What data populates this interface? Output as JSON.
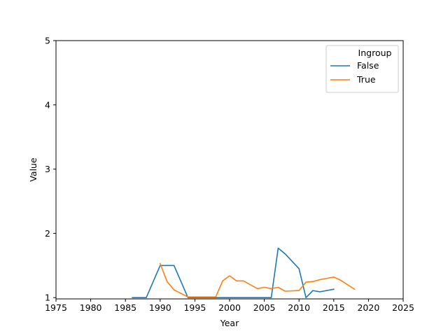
{
  "chart_data": {
    "type": "line",
    "xlabel": "Year",
    "ylabel": "Value",
    "xlim": [
      1975,
      2025
    ],
    "ylim": [
      0.98,
      5
    ],
    "xticks": [
      1975,
      1980,
      1985,
      1990,
      1995,
      2000,
      2005,
      2010,
      2015,
      2020,
      2025
    ],
    "yticks": [
      1,
      2,
      3,
      4,
      5
    ],
    "grid": false,
    "legend": {
      "title": "Ingroup",
      "placement": "top-right"
    },
    "series": [
      {
        "name": "False",
        "color": "#1f77b4",
        "x": [
          1986,
          1988,
          1990,
          1992,
          1994,
          1996,
          1998,
          2000,
          2002,
          2004,
          2006,
          2007,
          2008,
          2010,
          2011,
          2012,
          2013,
          2015
        ],
        "y": [
          1.0,
          1.0,
          1.5,
          1.5,
          1.0,
          1.0,
          1.0,
          1.0,
          1.0,
          1.0,
          1.0,
          1.77,
          1.68,
          1.45,
          1.0,
          1.11,
          1.09,
          1.13
        ]
      },
      {
        "name": "True",
        "color": "#ff7f0e",
        "x": [
          1990,
          1991,
          1992,
          1994,
          1996,
          1998,
          1999,
          2000,
          2001,
          2002,
          2004,
          2005,
          2006,
          2007,
          2008,
          2010,
          2011,
          2012,
          2013,
          2014,
          2015,
          2016,
          2018
        ],
        "y": [
          1.53,
          1.25,
          1.12,
          1.01,
          1.01,
          1.01,
          1.26,
          1.34,
          1.26,
          1.26,
          1.14,
          1.16,
          1.14,
          1.16,
          1.1,
          1.11,
          1.24,
          1.25,
          1.28,
          1.3,
          1.32,
          1.27,
          1.13
        ]
      }
    ]
  }
}
